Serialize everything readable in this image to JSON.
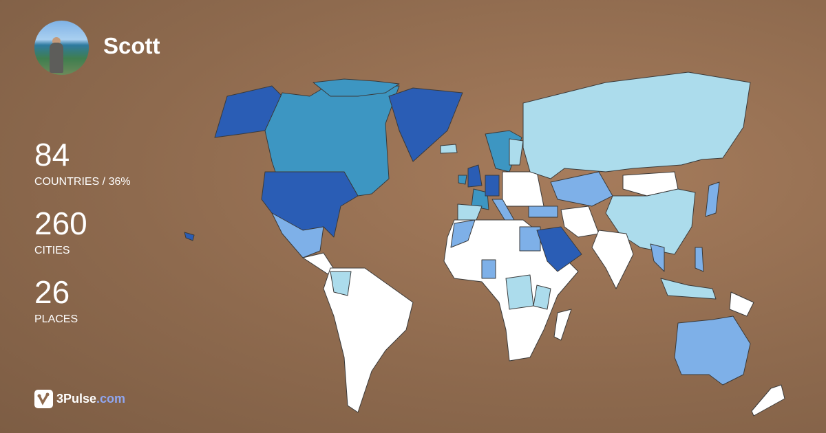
{
  "user": {
    "name": "Scott"
  },
  "stats": [
    {
      "value": "84",
      "label": "COUNTRIES / 36%"
    },
    {
      "value": "260",
      "label": "CITIES"
    },
    {
      "value": "26",
      "label": "PLACES"
    }
  ],
  "brand": {
    "name": "3Pulse",
    "tld": ".com",
    "tld_color": "#8fa6f0"
  },
  "map": {
    "background": "#9a7456",
    "level_colors": {
      "0": "#ffffff",
      "1": "#acdcec",
      "2": "#7eb0e8",
      "3": "#3d96c2",
      "4": "#2a5db5"
    }
  }
}
